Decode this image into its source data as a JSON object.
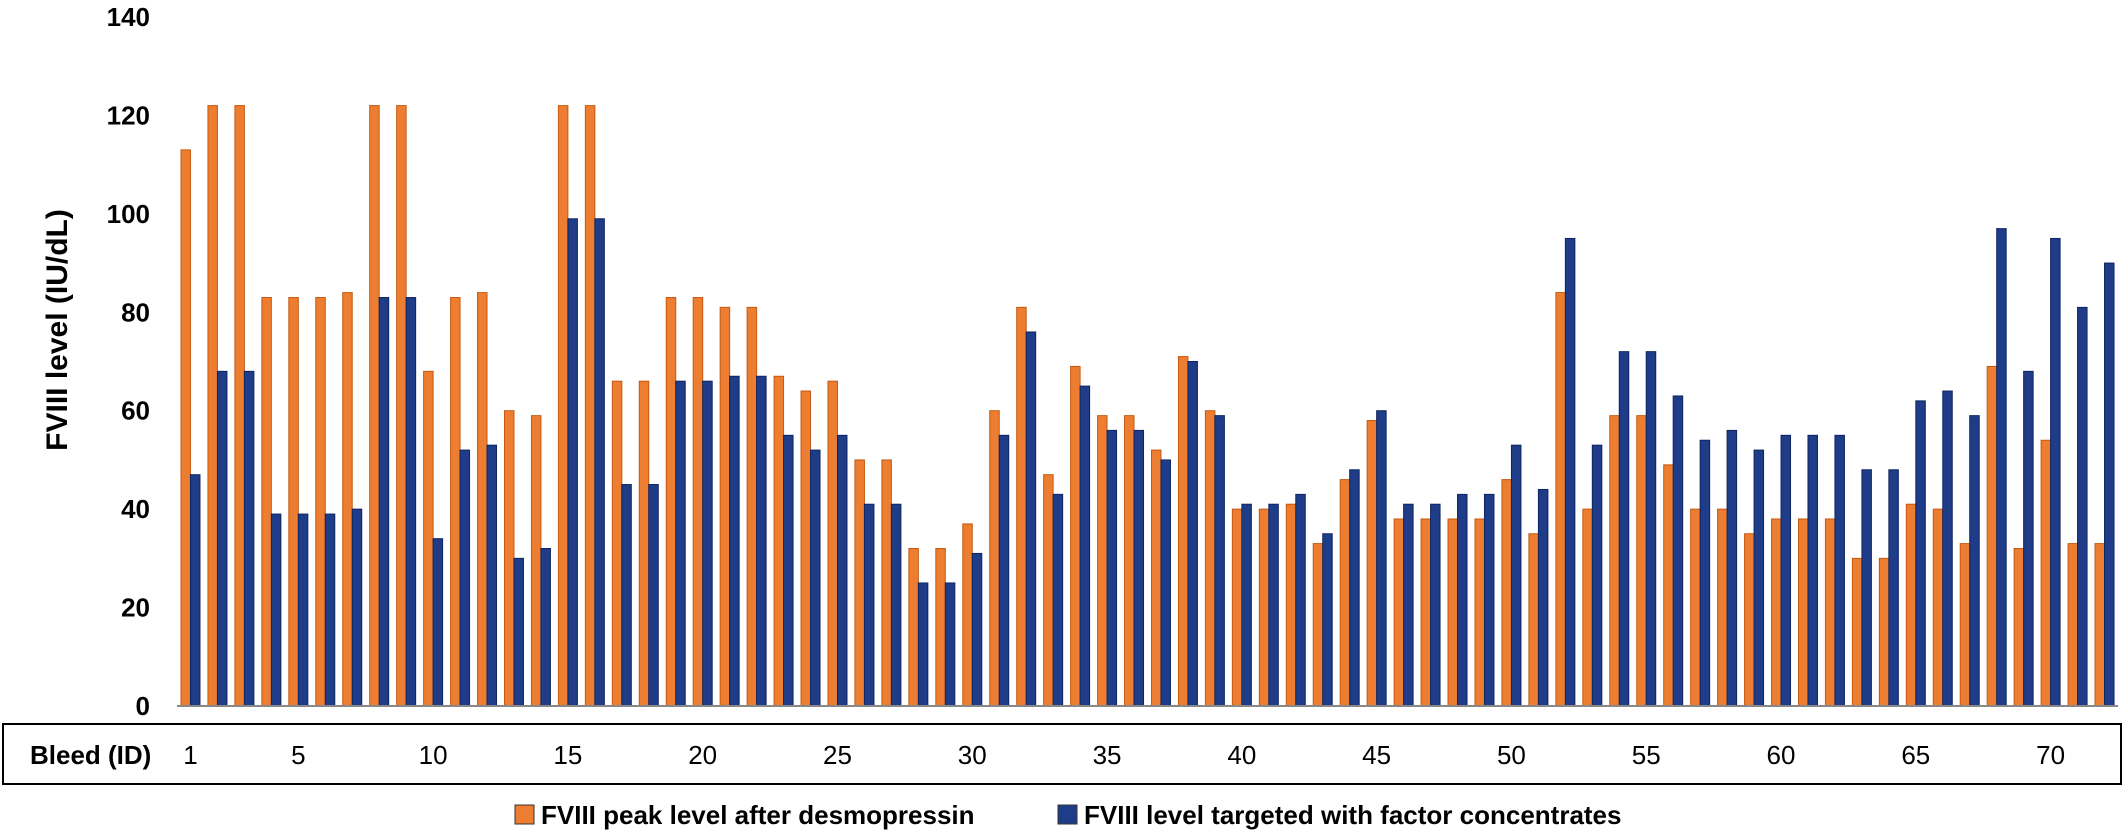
{
  "chart_data": {
    "type": "bar",
    "ylabel": "FVIII level (IU/dL)",
    "xlabel": "Bleed (ID)",
    "ylim": [
      0,
      140
    ],
    "yticks": [
      "0",
      "20",
      "40",
      "60",
      "80",
      "100",
      "120",
      "140"
    ],
    "categories": [
      1,
      2,
      3,
      4,
      5,
      6,
      7,
      8,
      9,
      10,
      11,
      12,
      13,
      14,
      15,
      16,
      17,
      18,
      19,
      20,
      21,
      22,
      23,
      24,
      25,
      26,
      27,
      28,
      29,
      30,
      31,
      32,
      33,
      34,
      35,
      36,
      37,
      38,
      39,
      40,
      41,
      42,
      43,
      44,
      45,
      46,
      47,
      48,
      49,
      50,
      51,
      52,
      53,
      54,
      55,
      56,
      57,
      58,
      59,
      60,
      61,
      62,
      63,
      64,
      65,
      66,
      67,
      68,
      69,
      70,
      71,
      72
    ],
    "xtick_labels": [
      "1",
      "5",
      "10",
      "15",
      "20",
      "25",
      "30",
      "35",
      "40",
      "45",
      "50",
      "55",
      "60",
      "65",
      "70"
    ],
    "xtick_ids": [
      1,
      5,
      10,
      15,
      20,
      25,
      30,
      35,
      40,
      45,
      50,
      55,
      60,
      65,
      70
    ],
    "series": [
      {
        "name": "FVIII peak level after desmopressin",
        "color": "#ED7D31",
        "values": [
          113,
          122,
          122,
          83,
          83,
          83,
          84,
          122,
          122,
          68,
          83,
          84,
          60,
          59,
          122,
          122,
          66,
          66,
          83,
          83,
          81,
          81,
          67,
          64,
          66,
          50,
          50,
          32,
          32,
          37,
          60,
          81,
          47,
          69,
          59,
          59,
          52,
          71,
          60,
          40,
          40,
          41,
          33,
          46,
          58,
          38,
          38,
          38,
          38,
          46,
          35,
          84,
          40,
          59,
          59,
          49,
          40,
          40,
          35,
          38,
          38,
          38,
          30,
          30,
          41,
          40,
          33,
          69,
          32,
          54,
          33,
          33
        ]
      },
      {
        "name": "FVIII level targeted with factor concentrates",
        "color": "#1F3C88",
        "values": [
          47,
          68,
          68,
          39,
          39,
          39,
          40,
          83,
          83,
          34,
          52,
          53,
          30,
          32,
          99,
          99,
          45,
          45,
          66,
          66,
          67,
          67,
          55,
          52,
          55,
          41,
          41,
          25,
          25,
          31,
          55,
          76,
          43,
          65,
          56,
          56,
          50,
          70,
          59,
          41,
          41,
          43,
          35,
          48,
          60,
          41,
          41,
          43,
          43,
          53,
          44,
          95,
          53,
          72,
          72,
          63,
          54,
          56,
          52,
          55,
          55,
          55,
          48,
          48,
          62,
          64,
          59,
          97,
          68,
          95,
          81,
          90
        ]
      }
    ],
    "legend": {
      "placement": "bottom"
    },
    "grid": false
  }
}
